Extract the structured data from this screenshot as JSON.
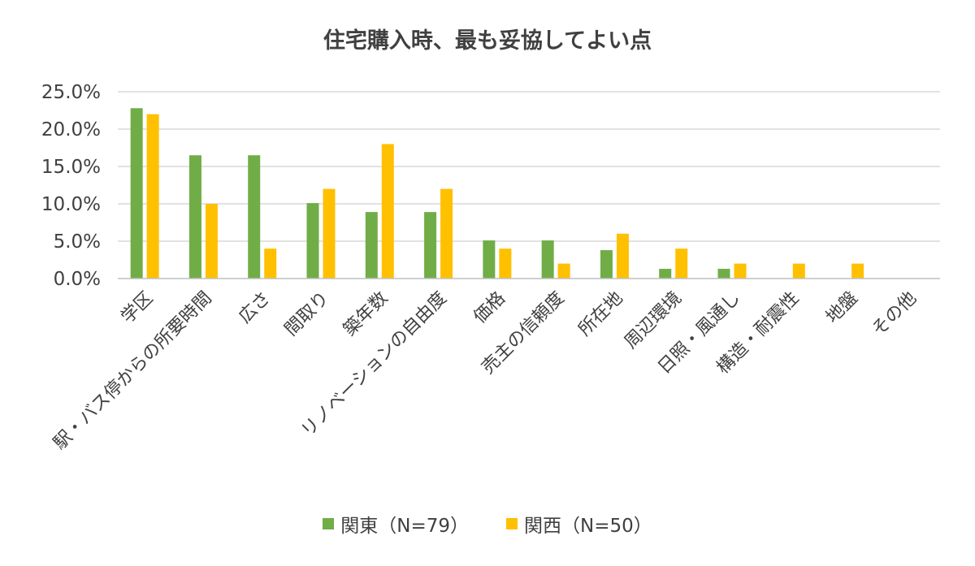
{
  "chart_data": {
    "type": "bar",
    "title": "住宅購入時、最も妥協してよい点",
    "categories": [
      "学区",
      "駅・バス停からの所要時間",
      "広さ",
      "間取り",
      "築年数",
      "リノベーションの自由度",
      "価格",
      "売主の信頼度",
      "所在地",
      "周辺環境",
      "日照・風通し",
      "構造・耐震性",
      "地盤",
      "その他"
    ],
    "series": [
      {
        "name": "関東（N=79）",
        "color": "#70ad47",
        "values": [
          22.8,
          16.5,
          16.5,
          10.1,
          8.9,
          8.9,
          5.1,
          5.1,
          3.8,
          1.3,
          1.3,
          0.0,
          0.0,
          0.0
        ]
      },
      {
        "name": "関西（N=50）",
        "color": "#ffc000",
        "values": [
          22.0,
          10.0,
          4.0,
          12.0,
          18.0,
          12.0,
          4.0,
          2.0,
          6.0,
          4.0,
          2.0,
          2.0,
          2.0,
          0.0
        ]
      }
    ],
    "ylim": [
      0,
      25
    ],
    "yticks": [
      "0.0%",
      "5.0%",
      "10.0%",
      "15.0%",
      "20.0%",
      "25.0%"
    ],
    "grid": true,
    "legend_position": "bottom"
  }
}
